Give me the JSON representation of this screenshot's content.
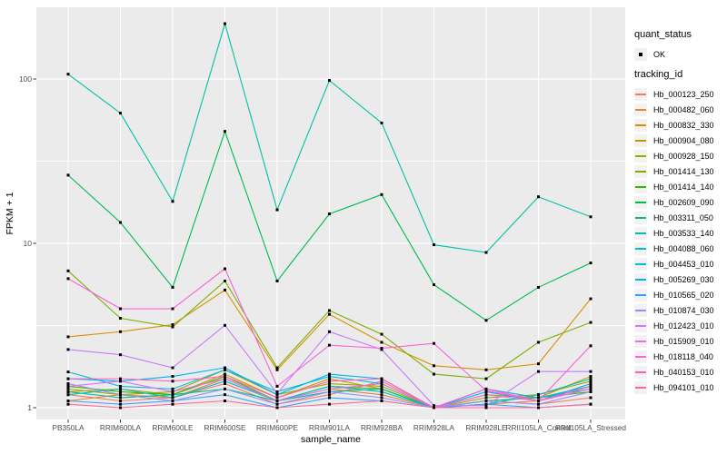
{
  "panel": {
    "bg": "#EBEBEB",
    "grid_color": "#FFFFFF",
    "tick_label_color": "#4D4D4D",
    "axis_title_color": "#000000",
    "legend_key_bg": "#F2F2F2",
    "point_color": "#000000"
  },
  "legends": {
    "quant_status": {
      "title": "quant_status",
      "items": [
        {
          "label": "OK",
          "symbol": "point"
        }
      ]
    },
    "tracking_id": {
      "title": "tracking_id"
    }
  },
  "chart_data": {
    "type": "line",
    "title": "",
    "xlabel": "sample_name",
    "ylabel": "FPKM + 1",
    "y_scale": "log10",
    "ylim": [
      1,
      280
    ],
    "y_ticks": [
      1,
      10,
      100
    ],
    "y_minor_ticks": [
      3.162,
      31.62
    ],
    "grid": true,
    "legend_position": "right",
    "categories": [
      "PB350LA",
      "RRIM600LA",
      "RRIM600LE",
      "RRIM600SE",
      "RRIM600PE",
      "RRIM901LA",
      "RRIM928BA",
      "RRIM928LA",
      "RRIM928LE",
      "RRII105LA_Control",
      "RRII105LA_Stressed"
    ],
    "series": [
      {
        "name": "Hb_000123_250",
        "color": "#F8766D",
        "values": [
          1.2,
          1.1,
          1.15,
          1.4,
          1.05,
          1.2,
          1.45,
          1.0,
          1.1,
          1.05,
          1.15
        ]
      },
      {
        "name": "Hb_000482_060",
        "color": "#EA8331",
        "values": [
          1.1,
          1.2,
          1.15,
          1.5,
          1.1,
          1.3,
          1.2,
          1.0,
          1.05,
          1.1,
          1.35
        ]
      },
      {
        "name": "Hb_000832_330",
        "color": "#D89000",
        "values": [
          2.7,
          2.9,
          3.2,
          5.2,
          1.7,
          3.7,
          2.5,
          1.8,
          1.7,
          1.85,
          4.6
        ]
      },
      {
        "name": "Hb_000904_080",
        "color": "#C09B00",
        "values": [
          1.25,
          1.3,
          1.2,
          1.6,
          1.15,
          1.5,
          1.3,
          1.0,
          1.2,
          1.15,
          1.55
        ]
      },
      {
        "name": "Hb_000928_150",
        "color": "#A3A500",
        "values": [
          1.3,
          1.2,
          1.25,
          1.7,
          1.2,
          1.4,
          1.35,
          1.0,
          1.15,
          1.2,
          1.45
        ]
      },
      {
        "name": "Hb_001414_130",
        "color": "#7CAE00",
        "values": [
          6.8,
          3.5,
          3.1,
          5.9,
          1.75,
          3.9,
          2.8,
          1.6,
          1.5,
          2.5,
          3.3
        ]
      },
      {
        "name": "Hb_001414_140",
        "color": "#39B600",
        "values": [
          1.35,
          1.25,
          1.2,
          1.55,
          1.1,
          1.35,
          1.3,
          1.0,
          1.1,
          1.15,
          1.25
        ]
      },
      {
        "name": "Hb_002609_090",
        "color": "#00BB4E",
        "values": [
          26,
          13.4,
          5.4,
          48,
          5.9,
          15.1,
          19.8,
          5.6,
          3.4,
          5.4,
          7.6
        ]
      },
      {
        "name": "Hb_003311_050",
        "color": "#00BF7D",
        "values": [
          1.25,
          1.15,
          1.2,
          1.3,
          1.1,
          1.25,
          1.3,
          1.0,
          1.1,
          1.15,
          1.3
        ]
      },
      {
        "name": "Hb_003533_140",
        "color": "#00C1A3",
        "values": [
          107,
          62,
          18,
          217,
          16,
          98,
          54,
          9.8,
          8.8,
          19.2,
          14.5
        ]
      },
      {
        "name": "Hb_004088_060",
        "color": "#00BFC4",
        "values": [
          1.2,
          1.3,
          1.15,
          1.45,
          1.1,
          1.35,
          1.25,
          1.0,
          1.05,
          1.2,
          1.5
        ]
      },
      {
        "name": "Hb_004453_010",
        "color": "#00BAE0",
        "values": [
          1.65,
          1.35,
          1.3,
          1.7,
          1.25,
          1.55,
          1.4,
          1.0,
          1.3,
          1.15,
          1.35
        ]
      },
      {
        "name": "Hb_005269_030",
        "color": "#00B0F6",
        "values": [
          1.5,
          1.45,
          1.55,
          1.75,
          1.2,
          1.6,
          1.5,
          1.0,
          1.25,
          1.1,
          1.4
        ]
      },
      {
        "name": "Hb_010565_020",
        "color": "#35A2FF",
        "values": [
          1.1,
          1.05,
          1.1,
          1.2,
          1.0,
          1.15,
          1.1,
          1.0,
          1.05,
          1.0,
          1.05
        ]
      },
      {
        "name": "Hb_010874_030",
        "color": "#9590FF",
        "values": [
          1.4,
          1.2,
          1.1,
          1.3,
          1.05,
          1.25,
          1.15,
          1.0,
          1.1,
          1.05,
          1.25
        ]
      },
      {
        "name": "Hb_012423_010",
        "color": "#C77CFF",
        "values": [
          2.26,
          2.1,
          1.75,
          3.17,
          1.22,
          2.9,
          2.26,
          1.03,
          1.03,
          1.66,
          1.66
        ]
      },
      {
        "name": "Hb_015909_010",
        "color": "#E76BF3",
        "values": [
          1.35,
          1.45,
          1.25,
          1.5,
          1.1,
          1.3,
          1.4,
          1.0,
          1.2,
          1.1,
          1.3
        ]
      },
      {
        "name": "Hb_018118_040",
        "color": "#FA62DB",
        "values": [
          6.1,
          4.0,
          4.0,
          7.0,
          1.35,
          2.4,
          2.3,
          2.46,
          1.27,
          1.1,
          2.38
        ]
      },
      {
        "name": "Hb_040153_010",
        "color": "#FF62BC",
        "values": [
          1.5,
          1.5,
          1.45,
          1.55,
          1.15,
          1.45,
          1.5,
          1.0,
          1.3,
          1.1,
          1.35
        ]
      },
      {
        "name": "Hb_094101_010",
        "color": "#FF6A98",
        "values": [
          1.05,
          1.0,
          1.05,
          1.1,
          1.0,
          1.05,
          1.1,
          1.0,
          1.0,
          1.0,
          1.05
        ]
      }
    ]
  }
}
